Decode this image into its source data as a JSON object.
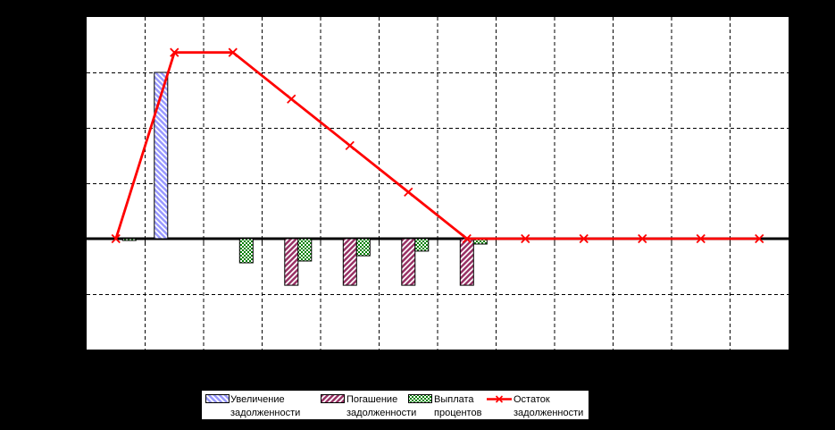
{
  "chart_data": {
    "type": "combo-bar-line",
    "title": "",
    "xlabel": "",
    "ylabel": "",
    "n_periods": 12,
    "ylim": [
      -50,
      100
    ],
    "ygrid_step": 25,
    "grid_style": "dashed",
    "axis_labels_visible": false,
    "legend_position": "bottom-center",
    "colors": {
      "outer_bg": "#000000",
      "plot_bg": "#ffffff",
      "grid": "#000000",
      "axis": "#000000"
    },
    "series": [
      {
        "name": "Увеличение задолженности",
        "type": "bar",
        "color": "#9999ff",
        "pattern": "diagonal-backslash",
        "values": [
          0,
          75,
          0,
          0,
          0,
          0,
          0,
          0,
          0,
          0,
          0,
          0
        ]
      },
      {
        "name": "Погашение задолженности",
        "type": "bar",
        "color": "#993366",
        "pattern": "diagonal-slash",
        "values": [
          0,
          0,
          0,
          -21,
          -21,
          -21,
          -21,
          0,
          0,
          0,
          0,
          0
        ]
      },
      {
        "name": "Выплата процентов",
        "type": "bar",
        "color": "#008000",
        "pattern": "checker",
        "values": [
          -0.8,
          0,
          -10.9,
          -10.1,
          -7.7,
          -5.6,
          -2.4,
          0,
          0,
          0,
          0,
          0
        ]
      },
      {
        "name": "Остаток задолженности",
        "type": "line",
        "color": "#ff0000",
        "marker": "x",
        "values": [
          0,
          84,
          84,
          63,
          42,
          21,
          0,
          0,
          0,
          0,
          0,
          0
        ]
      }
    ]
  },
  "legend": {
    "items": [
      {
        "line1": "Увеличение",
        "line2": "задолженности",
        "series": 0
      },
      {
        "line1": "Погашение",
        "line2": "задолженности",
        "series": 1
      },
      {
        "line1": "Выплата",
        "line2": "процентов",
        "series": 2
      },
      {
        "line1": "Остаток",
        "line2": "задолженности",
        "series": 3
      }
    ]
  }
}
